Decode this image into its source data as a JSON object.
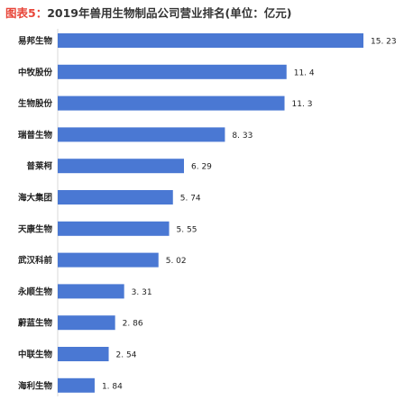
{
  "title_prefix": "图表5：",
  "title_text": "2019年兽用生物制品公司营业排名(单位：亿元)",
  "chart_data": {
    "type": "bar",
    "orientation": "horizontal",
    "title": "图表5：2019年兽用生物制品公司营业排名(单位：亿元)",
    "unit": "亿元",
    "categories": [
      "易邦生物",
      "中牧股份",
      "生物股份",
      "瑞普生物",
      "普莱柯",
      "海大集团",
      "天康生物",
      "武汉科前",
      "永顺生物",
      "蔚蓝生物",
      "中联生物",
      "海利生物"
    ],
    "values": [
      15.23,
      11.4,
      11.3,
      8.33,
      6.29,
      5.74,
      5.55,
      5.02,
      3.31,
      2.86,
      2.54,
      1.84
    ],
    "value_labels": [
      "15. 23",
      "11. 4",
      "11. 3",
      "8. 33",
      "6. 29",
      "5. 74",
      "5. 55",
      "5. 02",
      "3. 31",
      "2. 86",
      "2. 54",
      "1. 84"
    ],
    "xlim": [
      0,
      15.23
    ],
    "grid": false,
    "bar_color": "#4a78d3"
  }
}
